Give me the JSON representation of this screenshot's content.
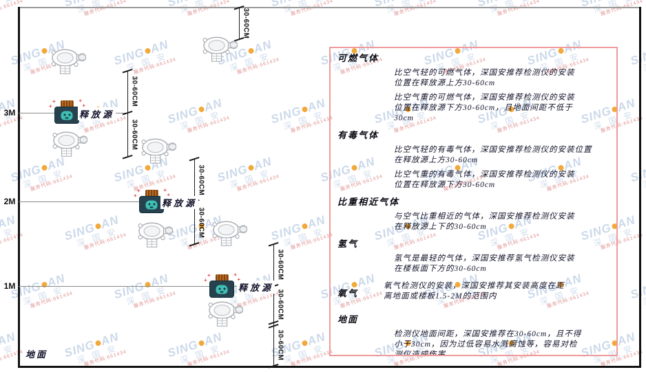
{
  "watermark": {
    "brand_prefix": "SING",
    "brand_suffix": "AN",
    "brand_cn": "深 国 安",
    "code": "服务代码:661434"
  },
  "dimension_label": "30-60CM",
  "source_label": "释放源",
  "axis": {
    "label_3m": "3M",
    "label_2m": "2M",
    "label_1m": "1M",
    "ground_label": "地面"
  },
  "panel": {
    "sections": [
      {
        "heading": "可燃气体",
        "paragraphs": [
          [
            "比空气轻的可燃气体，深国安推荐检测仪的安装",
            "位置在释放源上方30-60cm"
          ],
          [
            "比空气重的可燃气体，深国安推荐检测仪的安装",
            "位置在释放源下方30-60cm，且地面间距不低于",
            "30cm"
          ]
        ]
      },
      {
        "heading": "有毒气体",
        "paragraphs": [
          [
            "比空气轻的有毒气体，深国安推荐检测仪的安装位置",
            "在释放源上方30-60cm"
          ],
          [
            "比空气重的有毒气体，深国安推荐检测仪的安装",
            "位置在释放源下方30-60cm"
          ]
        ]
      },
      {
        "heading": "比重相近气体",
        "paragraphs": [
          [
            "与空气比重相近的气体，深国安推荐检测仪安装",
            "在释放源上下的30-60cm"
          ]
        ]
      },
      {
        "heading": "氢气",
        "paragraphs": [
          [
            "氢气是最轻的气体，深国安推荐氢气检测仪安装",
            "在楼板面下方的30-60cm"
          ]
        ]
      },
      {
        "heading": "氧气",
        "inline": true,
        "paragraphs": [
          [
            "氧气检测仪的安装，深国安推荐其安装高度在距",
            "离地面或楼板1.5-2M的范围内"
          ]
        ]
      },
      {
        "heading": "地面",
        "paragraphs": [
          [
            "检测仪地面间距，深国安推荐在30-60cm，且不得",
            "小于30cm，因为过低容易水溅腐蚀等，容易对检",
            "测仪造成伤害"
          ]
        ]
      }
    ]
  },
  "colors": {
    "panel_border": "#f09a9a",
    "sparkle_red": "#e04848",
    "source_body": "#27424f",
    "source_cap": "#b96a22",
    "source_face": "#3fbfb4",
    "watermark_blue": "#ccd9ea",
    "watermark_dot": "#f2a93b",
    "watermark_code_red": "#d46a6a",
    "wall_line": "#111111",
    "level_line": "#8a8a8a",
    "detector_gray": "#a7abb1"
  }
}
